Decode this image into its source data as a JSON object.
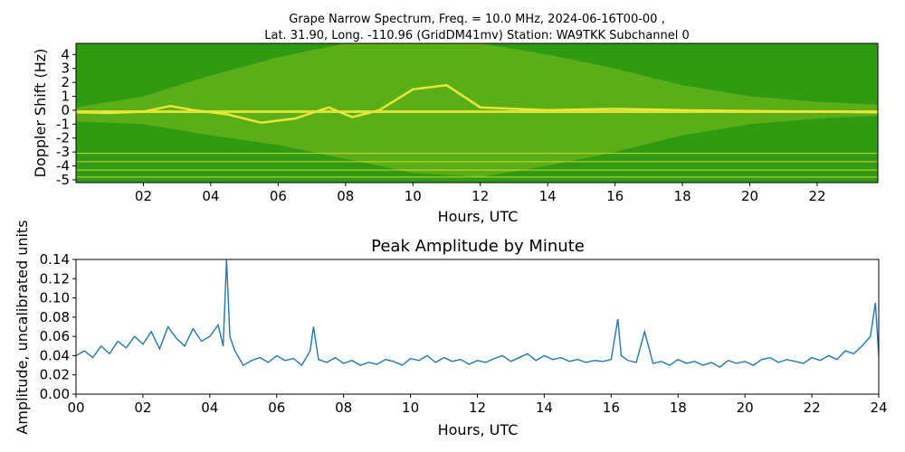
{
  "chart_data": [
    {
      "type": "heatmap",
      "title_line1": "Grape Narrow Spectrum, Freq. = 10.0 MHz, 2024-06-16T00-00 ,",
      "title_line2": "Lat.  31.90, Long. -110.96 (GridDM41mv) Station: WA9TKK Subchannel 0",
      "xlabel": "Hours, UTC",
      "ylabel": "Doppler Shift (Hz)",
      "xlim": [
        0,
        23.8
      ],
      "ylim": [
        -5.2,
        4.8
      ],
      "x_ticks": [
        2,
        4,
        6,
        8,
        10,
        12,
        14,
        16,
        18,
        20,
        22
      ],
      "x_tick_labels": [
        "02",
        "04",
        "06",
        "08",
        "10",
        "12",
        "14",
        "16",
        "18",
        "20",
        "22"
      ],
      "y_ticks": [
        4,
        3,
        2,
        1,
        0,
        -1,
        -2,
        -3,
        -4,
        -5
      ],
      "y_tick_labels": [
        "4",
        "3",
        "2",
        "1",
        "0",
        "-1",
        "-2",
        "-3",
        "-4",
        "-5"
      ],
      "colors": {
        "background": "#2f9a12",
        "mid": "#7fbf1c",
        "high": "#e8e83a",
        "peak": "#ff2a00"
      },
      "carrier_line": [
        {
          "x": 0.0,
          "y": -0.15
        },
        {
          "x": 1.0,
          "y": -0.2
        },
        {
          "x": 2.0,
          "y": -0.1
        },
        {
          "x": 2.8,
          "y": 0.3
        },
        {
          "x": 3.5,
          "y": 0.0
        },
        {
          "x": 4.5,
          "y": -0.3
        },
        {
          "x": 5.5,
          "y": -0.9
        },
        {
          "x": 6.5,
          "y": -0.6
        },
        {
          "x": 7.5,
          "y": 0.2
        },
        {
          "x": 8.2,
          "y": -0.5
        },
        {
          "x": 9.0,
          "y": 0.0
        },
        {
          "x": 10.0,
          "y": 1.5
        },
        {
          "x": 11.0,
          "y": 1.8
        },
        {
          "x": 12.0,
          "y": 0.2
        },
        {
          "x": 14.0,
          "y": 0.0
        },
        {
          "x": 16.0,
          "y": 0.1
        },
        {
          "x": 18.0,
          "y": 0.0
        },
        {
          "x": 20.0,
          "y": -0.05
        },
        {
          "x": 22.0,
          "y": -0.1
        },
        {
          "x": 23.8,
          "y": -0.15
        }
      ],
      "steady_line_y": -0.1,
      "horizontal_lines_y": [
        -3.1,
        -3.7,
        -4.3,
        -4.8
      ],
      "bright_band": [
        {
          "x": 0.0,
          "y_low": -0.8,
          "y_high": 0.2
        },
        {
          "x": 2.0,
          "y_low": -1.0,
          "y_high": 1.0
        },
        {
          "x": 4.0,
          "y_low": -1.8,
          "y_high": 2.5
        },
        {
          "x": 6.0,
          "y_low": -2.5,
          "y_high": 3.8
        },
        {
          "x": 8.0,
          "y_low": -3.5,
          "y_high": 4.8
        },
        {
          "x": 10.0,
          "y_low": -4.5,
          "y_high": 4.8
        },
        {
          "x": 12.0,
          "y_low": -4.8,
          "y_high": 4.8
        },
        {
          "x": 14.0,
          "y_low": -4.0,
          "y_high": 4.0
        },
        {
          "x": 16.0,
          "y_low": -3.0,
          "y_high": 3.0
        },
        {
          "x": 18.0,
          "y_low": -1.8,
          "y_high": 1.8
        },
        {
          "x": 20.0,
          "y_low": -1.0,
          "y_high": 1.0
        },
        {
          "x": 22.0,
          "y_low": -0.6,
          "y_high": 0.6
        },
        {
          "x": 23.8,
          "y_low": -0.4,
          "y_high": 0.4
        }
      ]
    },
    {
      "type": "line",
      "title": "Peak Amplitude by Minute",
      "xlabel": "Hours, UTC",
      "ylabel": "Amplitude, uncalibrated units",
      "xlim": [
        0,
        24
      ],
      "ylim": [
        0.0,
        0.14
      ],
      "x_ticks": [
        0,
        2,
        4,
        6,
        8,
        10,
        12,
        14,
        16,
        18,
        20,
        22,
        24
      ],
      "x_tick_labels": [
        "00",
        "02",
        "04",
        "06",
        "08",
        "10",
        "12",
        "14",
        "16",
        "18",
        "20",
        "22",
        "24"
      ],
      "y_ticks": [
        0.0,
        0.02,
        0.04,
        0.06,
        0.08,
        0.1,
        0.12,
        0.14
      ],
      "y_tick_labels": [
        "0.00",
        "0.02",
        "0.04",
        "0.06",
        "0.08",
        "0.10",
        "0.12",
        "0.14"
      ],
      "series_color": "#1f77b4",
      "x": [
        0.0,
        0.25,
        0.5,
        0.75,
        1.0,
        1.25,
        1.5,
        1.75,
        2.0,
        2.25,
        2.5,
        2.75,
        3.0,
        3.25,
        3.5,
        3.75,
        4.0,
        4.25,
        4.4,
        4.5,
        4.6,
        4.75,
        5.0,
        5.25,
        5.5,
        5.75,
        6.0,
        6.25,
        6.5,
        6.75,
        7.0,
        7.1,
        7.25,
        7.5,
        7.75,
        8.0,
        8.25,
        8.5,
        8.75,
        9.0,
        9.25,
        9.5,
        9.75,
        10.0,
        10.25,
        10.5,
        10.75,
        11.0,
        11.25,
        11.5,
        11.75,
        12.0,
        12.25,
        12.5,
        12.75,
        13.0,
        13.25,
        13.5,
        13.75,
        14.0,
        14.25,
        14.5,
        14.75,
        15.0,
        15.25,
        15.5,
        15.75,
        16.0,
        16.2,
        16.3,
        16.5,
        16.75,
        17.0,
        17.25,
        17.5,
        17.75,
        18.0,
        18.25,
        18.5,
        18.75,
        19.0,
        19.25,
        19.5,
        19.75,
        20.0,
        20.25,
        20.5,
        20.75,
        21.0,
        21.25,
        21.5,
        21.75,
        22.0,
        22.25,
        22.5,
        22.75,
        23.0,
        23.25,
        23.5,
        23.75,
        23.9,
        24.0
      ],
      "y": [
        0.04,
        0.045,
        0.038,
        0.05,
        0.042,
        0.055,
        0.048,
        0.06,
        0.052,
        0.065,
        0.047,
        0.07,
        0.058,
        0.05,
        0.068,
        0.055,
        0.06,
        0.072,
        0.05,
        0.14,
        0.06,
        0.045,
        0.03,
        0.035,
        0.038,
        0.033,
        0.04,
        0.035,
        0.037,
        0.03,
        0.045,
        0.07,
        0.036,
        0.033,
        0.038,
        0.032,
        0.035,
        0.03,
        0.033,
        0.031,
        0.036,
        0.034,
        0.03,
        0.037,
        0.035,
        0.04,
        0.033,
        0.038,
        0.034,
        0.036,
        0.031,
        0.035,
        0.033,
        0.037,
        0.04,
        0.034,
        0.038,
        0.042,
        0.035,
        0.04,
        0.036,
        0.038,
        0.034,
        0.036,
        0.033,
        0.035,
        0.034,
        0.036,
        0.078,
        0.04,
        0.035,
        0.033,
        0.065,
        0.032,
        0.034,
        0.03,
        0.036,
        0.032,
        0.034,
        0.03,
        0.033,
        0.028,
        0.035,
        0.032,
        0.034,
        0.03,
        0.036,
        0.038,
        0.033,
        0.036,
        0.034,
        0.032,
        0.038,
        0.035,
        0.04,
        0.036,
        0.045,
        0.042,
        0.05,
        0.06,
        0.095,
        0.04
      ]
    }
  ]
}
